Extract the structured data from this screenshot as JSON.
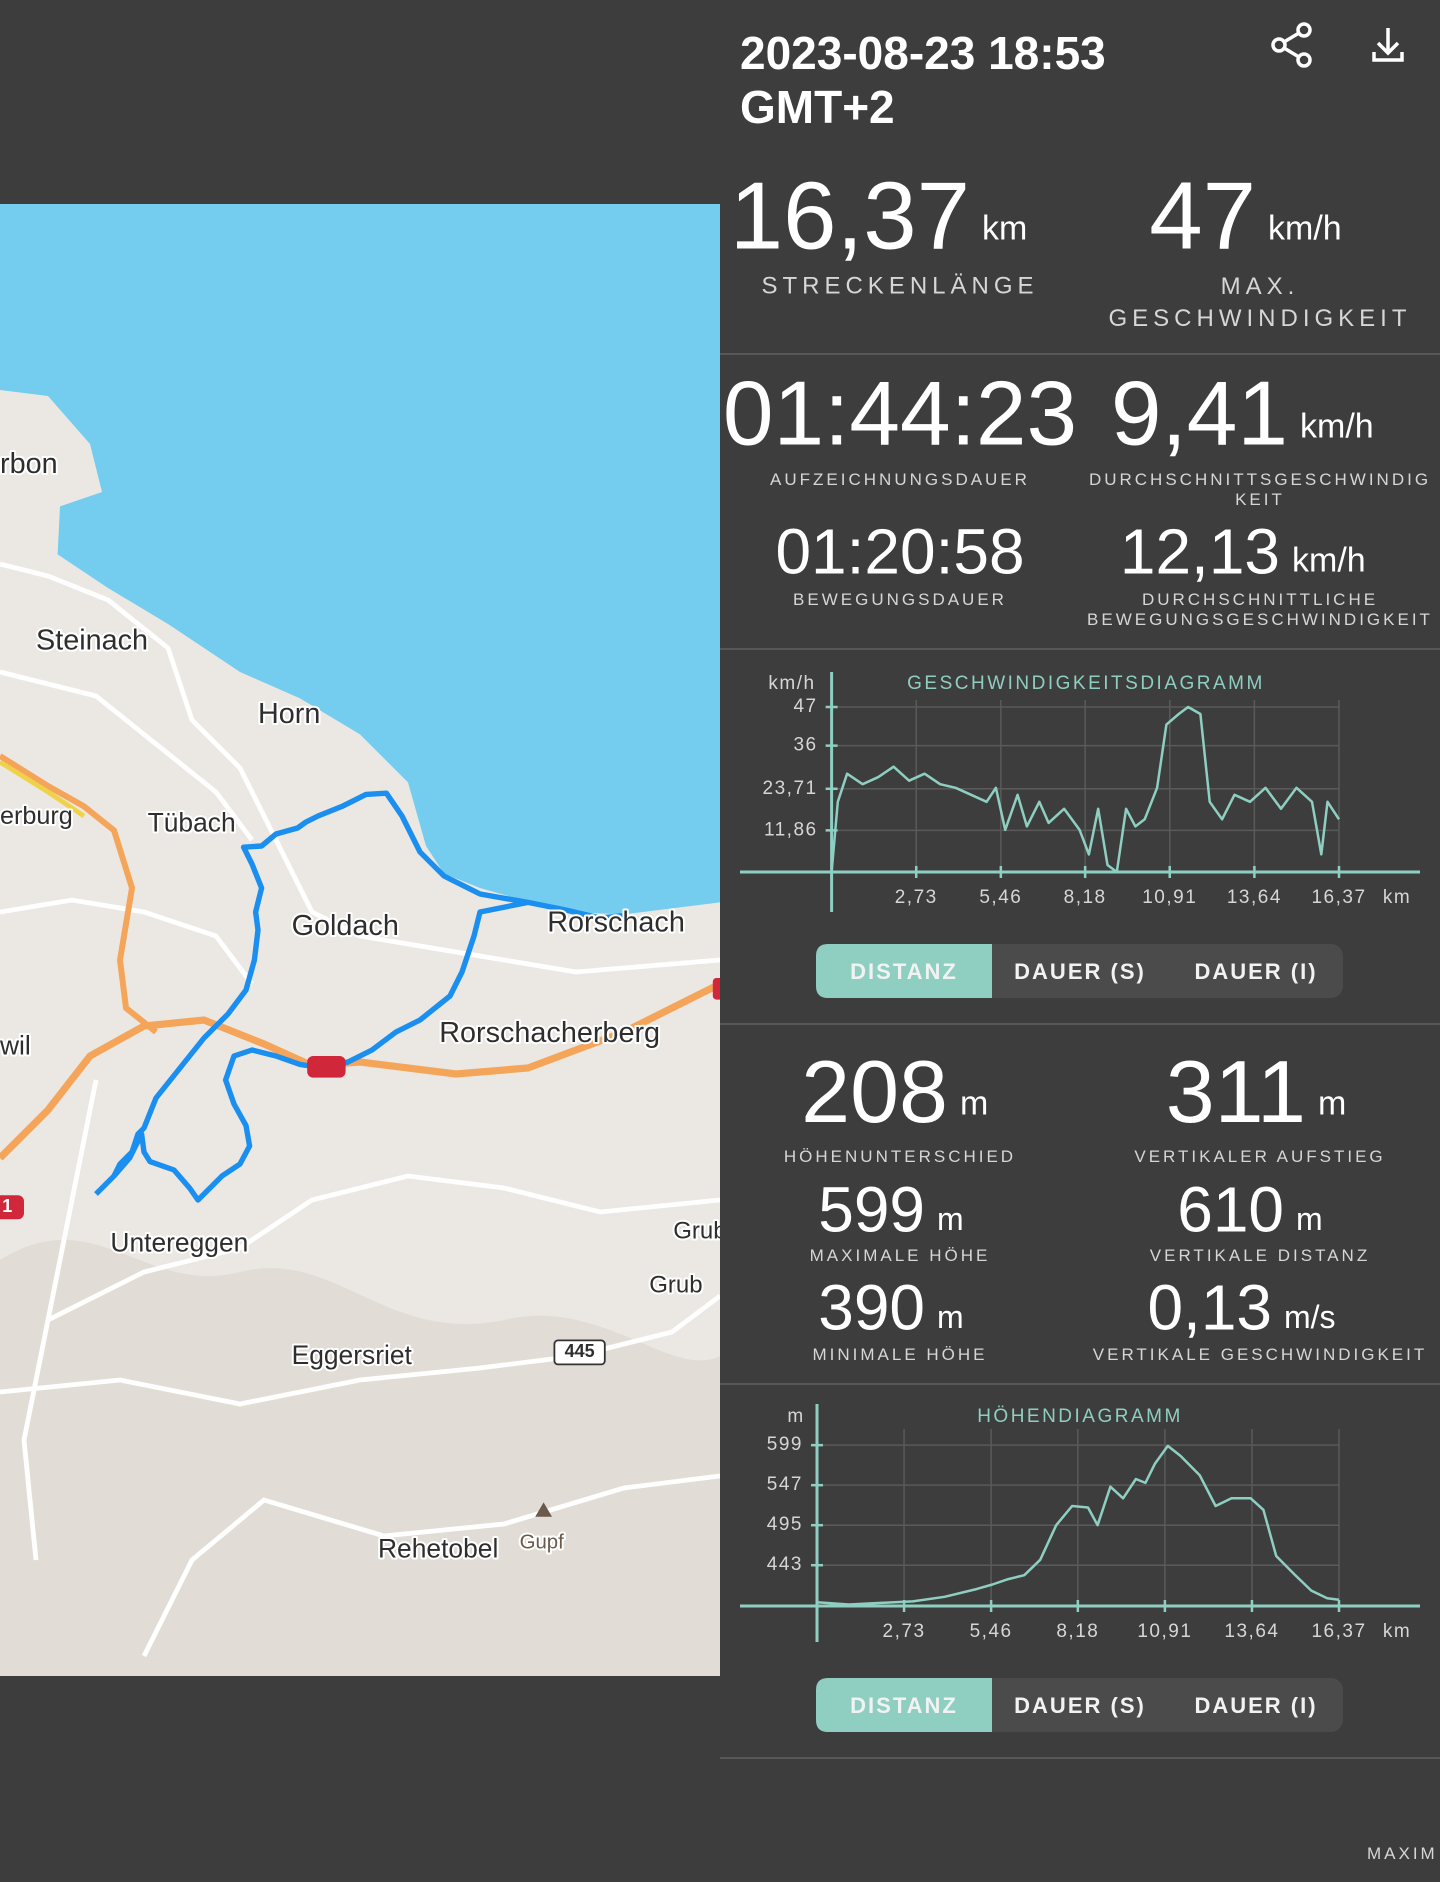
{
  "header": {
    "datetime": "2023-08-23 18:53 GMT+2"
  },
  "stats_top": [
    {
      "value": "16,37",
      "unit": "km",
      "label": "STRECKENLÄNGE"
    },
    {
      "value": "47",
      "unit": "km/h",
      "label": "MAX. GESCHWINDIGKEIT"
    }
  ],
  "stats_time": [
    {
      "value": "01:44:23",
      "label": "AUFZEICHNUNGSDAUER"
    },
    {
      "value": "9,41",
      "unit": "km/h",
      "label": "DURCHSCHNITTSGESCHWINDIGKEIT"
    },
    {
      "value": "01:20:58",
      "label": "BEWEGUNGSDAUER"
    },
    {
      "value": "12,13",
      "unit": "km/h",
      "label": "DURCHSCHNITTLICHE BEWEGUNGSGESCHWINDIGKEIT"
    }
  ],
  "speed_chart": {
    "type": "line",
    "title": "GESCHWINDIGKEITSDIAGRAMM",
    "y_label": "km/h",
    "x_label": "km",
    "color": "#8ecfc2",
    "x": [
      0,
      0.2,
      0.5,
      1,
      1.5,
      2,
      2.5,
      3,
      3.5,
      4,
      4.5,
      5,
      5.3,
      5.6,
      6,
      6.3,
      6.7,
      7,
      7.5,
      8,
      8.3,
      8.6,
      8.9,
      9.2,
      9.5,
      9.8,
      10.1,
      10.5,
      10.8,
      11.2,
      11.5,
      11.9,
      12.2,
      12.6,
      13,
      13.5,
      14,
      14.5,
      15,
      15.5,
      15.8,
      16,
      16.37
    ],
    "values": [
      0,
      20,
      28,
      25,
      27,
      30,
      26,
      28,
      25,
      24,
      22,
      20,
      24,
      12,
      22,
      13,
      20,
      14,
      18,
      12,
      5,
      18,
      2,
      0,
      18,
      13,
      15,
      24,
      42,
      45,
      47,
      45,
      20,
      15,
      22,
      20,
      24,
      18,
      24,
      20,
      5,
      20,
      15
    ],
    "xlim": [
      0,
      16.37
    ],
    "ylim": [
      0,
      49
    ],
    "xticks": [
      {
        "value": 2.73,
        "label": "2,73"
      },
      {
        "value": 5.46,
        "label": "5,46"
      },
      {
        "value": 8.18,
        "label": "8,18"
      },
      {
        "value": 10.91,
        "label": "10,91"
      },
      {
        "value": 13.64,
        "label": "13,64"
      },
      {
        "value": 16.37,
        "label": "16,37"
      }
    ],
    "yticks": [
      {
        "value": 11.86,
        "label": "11,86"
      },
      {
        "value": 23.71,
        "label": "23,71"
      },
      36,
      47
    ],
    "grid": true
  },
  "speed_tabs": [
    "DISTANZ",
    "DAUER (S)",
    "DAUER (I)"
  ],
  "stats_elevation": [
    {
      "value": "208",
      "unit": "m",
      "label": "HÖHENUNTERSCHIED"
    },
    {
      "value": "311",
      "unit": "m",
      "label": "VERTIKALER AUFSTIEG"
    },
    {
      "value": "599",
      "unit": "m",
      "label": "MAXIMALE HÖHE"
    },
    {
      "value": "610",
      "unit": "m",
      "label": "VERTIKALE DISTANZ"
    },
    {
      "value": "390",
      "unit": "m",
      "label": "MINIMALE HÖHE"
    },
    {
      "value": "0,13",
      "unit": "m/s",
      "label": "VERTIKALE GESCHWINDIGKEIT"
    }
  ],
  "elevation_chart": {
    "type": "line",
    "title": "HÖHENDIAGRAMM",
    "y_label": "m",
    "x_label": "km",
    "color": "#8ecfc2",
    "x": [
      0,
      1,
      2,
      3,
      4,
      5,
      5.5,
      6,
      6.5,
      7,
      7.5,
      8,
      8.5,
      8.8,
      9.2,
      9.6,
      10,
      10.3,
      10.6,
      11,
      11.4,
      12,
      12.5,
      13,
      13.6,
      14,
      14.4,
      15,
      15.5,
      16,
      16.37
    ],
    "values": [
      395,
      392,
      394,
      396,
      402,
      412,
      418,
      425,
      430,
      450,
      495,
      520,
      518,
      495,
      545,
      530,
      555,
      550,
      575,
      598,
      585,
      560,
      520,
      530,
      530,
      515,
      455,
      430,
      410,
      400,
      398
    ],
    "xlim": [
      0,
      16.37
    ],
    "ylim": [
      390,
      620
    ],
    "xticks": [
      {
        "value": 2.73,
        "label": "2,73"
      },
      {
        "value": 5.46,
        "label": "5,46"
      },
      {
        "value": 8.18,
        "label": "8,18"
      },
      {
        "value": 10.91,
        "label": "10,91"
      },
      {
        "value": 13.64,
        "label": "13,64"
      },
      {
        "value": 16.37,
        "label": "16,37"
      }
    ],
    "yticks": [
      443,
      495,
      547,
      599
    ],
    "grid": true
  },
  "elevation_tabs": [
    "DISTANZ",
    "DAUER (S)",
    "DAUER (I)"
  ],
  "map": {
    "labels": [
      "rbon",
      "Steinach",
      "Horn",
      "erburg",
      "Tübach",
      "Goldach",
      "Rorschach",
      "Rorschacherberg",
      "wil",
      "Untereggen",
      "Grub",
      "Grub",
      "Eggersriet",
      "445",
      "Rehetobel",
      "Gupf",
      "1"
    ]
  },
  "footer": "MAXIM"
}
